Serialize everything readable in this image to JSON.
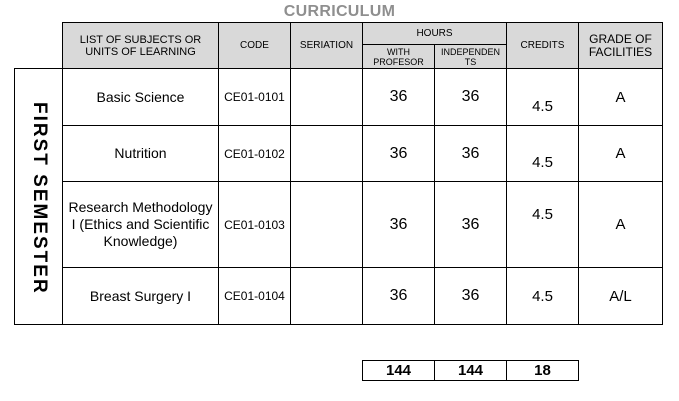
{
  "title": "CURRICULUM",
  "headers": {
    "subjects": "LIST OF SUBJECTS OR UNITS OF LEARNING",
    "code": "CODE",
    "seriation": "SERIATION",
    "hours": "HOURS",
    "with_professor": "WITH PROFESOR",
    "independents": "INDEPENDEN TS",
    "credits": "CREDITS",
    "grade": "GRADE OF FACILITIES"
  },
  "semester": "FIRST SEMESTER",
  "rows": [
    {
      "subject": "Basic Science",
      "code": "CE01-0101",
      "seriation": "",
      "with_professor": "36",
      "independent": "36",
      "credits": "4.5",
      "grade": "A"
    },
    {
      "subject": "Nutrition",
      "code": "CE01-0102",
      "seriation": "",
      "with_professor": "36",
      "independent": "36",
      "credits": "4.5",
      "grade": "A"
    },
    {
      "subject": "Research Methodology I (Ethics and Scientific Knowledge)",
      "code": "CE01-0103",
      "seriation": "",
      "with_professor": "36",
      "independent": "36",
      "credits": "4.5",
      "grade": "A"
    },
    {
      "subject": "Breast Surgery I",
      "code": "CE01-0104",
      "seriation": "",
      "with_professor": "36",
      "independent": "36",
      "credits": "4.5",
      "grade": "A/L"
    }
  ],
  "totals": {
    "with_professor": "144",
    "independent": "144",
    "credits": "18"
  }
}
